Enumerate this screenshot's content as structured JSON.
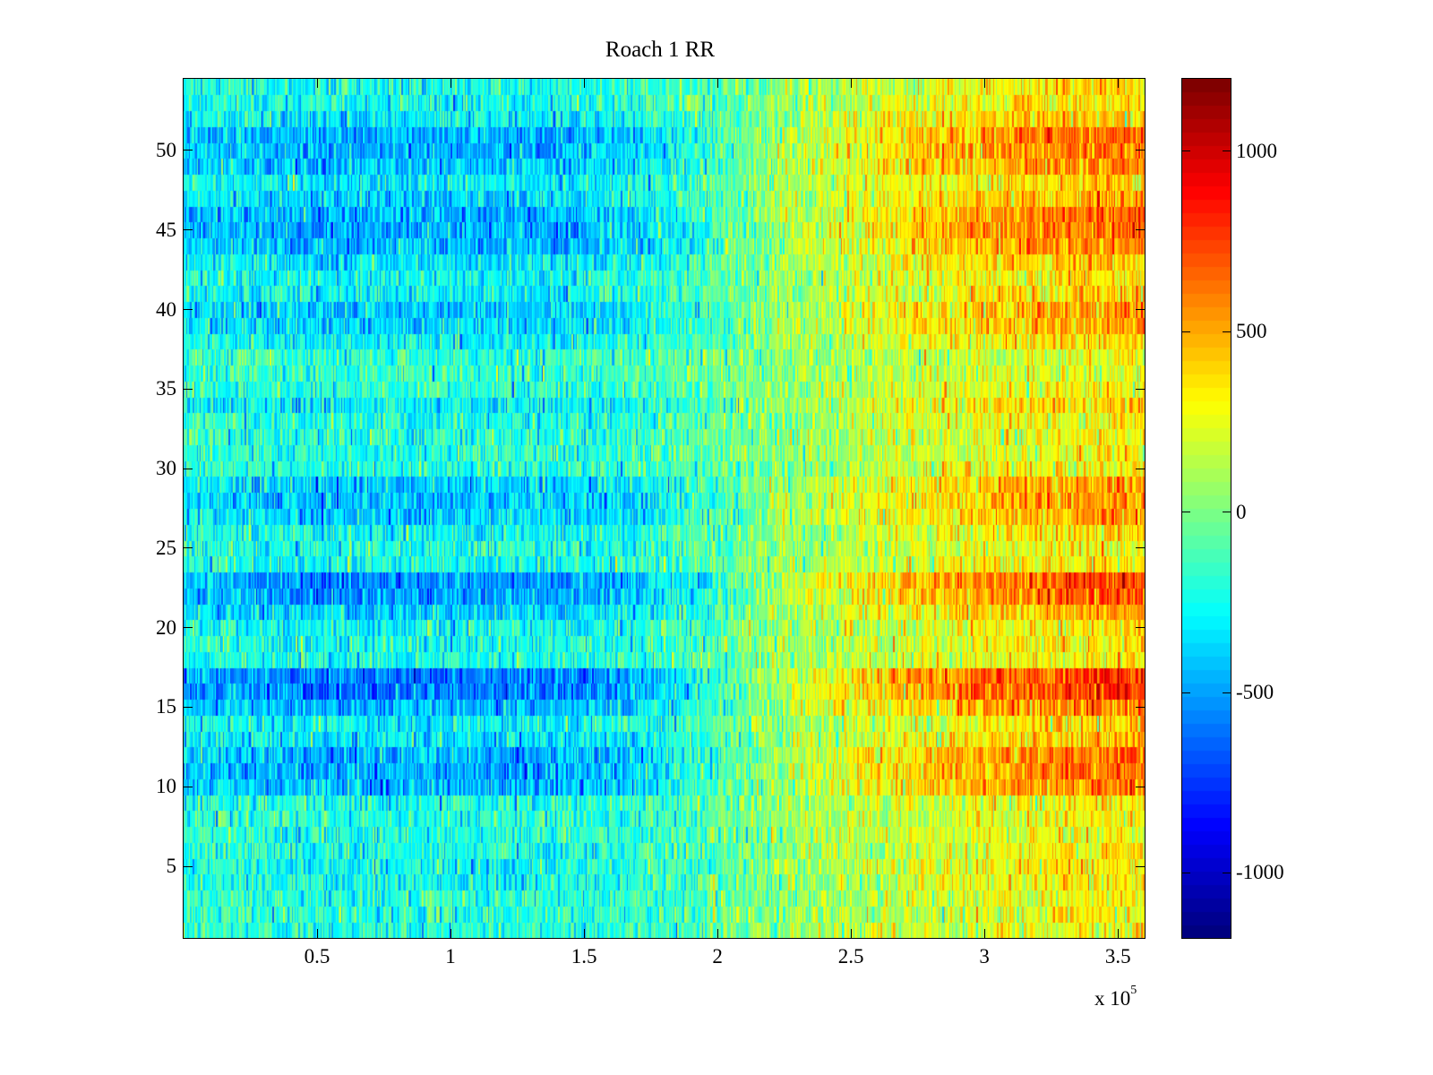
{
  "chart_data": {
    "type": "heatmap",
    "title": "Roach 1 RR",
    "xlabel": "",
    "ylabel": "",
    "x_exponent_label": "x 10",
    "x_exponent_power": "5",
    "xlim": [
      0,
      360000
    ],
    "ylim": [
      0.5,
      54.5
    ],
    "rows": 54,
    "xticks": [
      50000,
      100000,
      150000,
      200000,
      250000,
      300000,
      350000
    ],
    "xtick_labels": [
      "0.5",
      "1",
      "1.5",
      "2",
      "2.5",
      "3",
      "3.5"
    ],
    "yticks": [
      5,
      10,
      15,
      20,
      25,
      30,
      35,
      40,
      45,
      50
    ],
    "ytick_labels": [
      "5",
      "10",
      "15",
      "20",
      "25",
      "30",
      "35",
      "40",
      "45",
      "50"
    ],
    "colormap": "jet",
    "clim": [
      -1180,
      1200
    ],
    "colorbar_ticks": [
      1000,
      500,
      0,
      -500,
      -1000
    ],
    "colorbar_tick_labels": [
      "1000",
      "500",
      "0",
      "-500",
      "-1000"
    ],
    "column_trend_bins_x": [
      15000,
      45000,
      75000,
      105000,
      135000,
      165000,
      195000,
      225000,
      255000,
      285000,
      315000,
      345000
    ],
    "column_trend_values": [
      -250,
      -300,
      -300,
      -290,
      -300,
      -250,
      -120,
      60,
      180,
      280,
      350,
      400
    ],
    "row_contrast": [
      -0.3,
      -0.3,
      -0.3,
      -0.2,
      -0.1,
      -0.2,
      -0.3,
      -0.3,
      -0.2,
      0.5,
      0.6,
      0.6,
      0.1,
      0.0,
      0.5,
      1.0,
      1.0,
      -0.2,
      -0.2,
      -0.1,
      0.3,
      0.7,
      0.8,
      -0.1,
      -0.2,
      -0.1,
      0.3,
      0.4,
      0.3,
      -0.3,
      -0.3,
      -0.3,
      -0.2,
      0.0,
      -0.3,
      -0.4,
      -0.4,
      0.0,
      0.3,
      0.3,
      0.0,
      -0.1,
      0.1,
      0.5,
      0.6,
      0.6,
      0.2,
      0.1,
      0.4,
      0.6,
      0.6,
      0.1,
      -0.1,
      -0.1
    ],
    "noise_std": 150,
    "grid": false
  }
}
